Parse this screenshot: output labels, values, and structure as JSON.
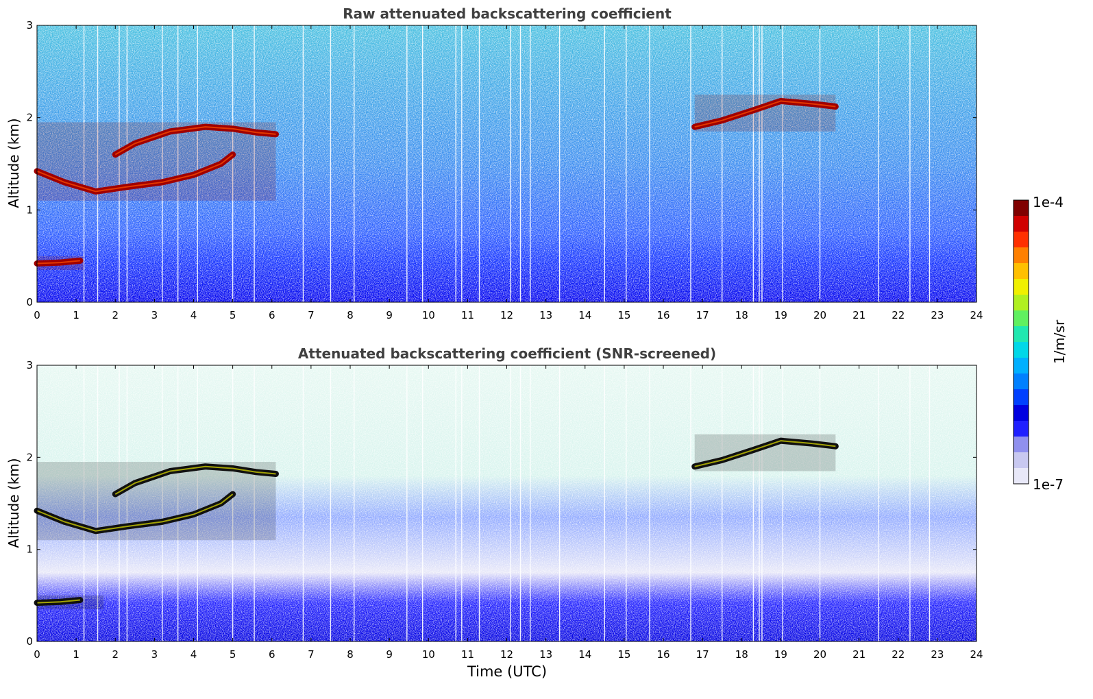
{
  "chart_data": [
    {
      "type": "heatmap",
      "title": "Raw attenuated backscattering coefficient",
      "xlabel": "",
      "ylabel": "Altitude (km)",
      "xlim": [
        0,
        24
      ],
      "ylim": [
        0,
        3
      ],
      "xticks": [
        "0",
        "1",
        "2",
        "3",
        "4",
        "5",
        "6",
        "7",
        "8",
        "9",
        "10",
        "11",
        "12",
        "13",
        "14",
        "15",
        "16",
        "17",
        "18",
        "19",
        "20",
        "21",
        "22",
        "23",
        "24"
      ],
      "yticks": [
        "0",
        "1",
        "2",
        "3"
      ],
      "features": [
        {
          "name": "cloud layer",
          "x": [
            0,
            6.1
          ],
          "y": [
            1.1,
            1.95
          ]
        },
        {
          "name": "low aerosol layer",
          "x": [
            0,
            1.2
          ],
          "y": [
            0.35,
            0.5
          ]
        },
        {
          "name": "cloud layer",
          "x": [
            16.8,
            20.4
          ],
          "y": [
            1.85,
            2.25
          ]
        }
      ]
    },
    {
      "type": "heatmap",
      "title": "Attenuated backscattering coefficient (SNR-screened)",
      "xlabel": "Time (UTC)",
      "ylabel": "Altitude (km)",
      "xlim": [
        0,
        24
      ],
      "ylim": [
        0,
        3
      ],
      "xticks": [
        "0",
        "1",
        "2",
        "3",
        "4",
        "5",
        "6",
        "7",
        "8",
        "9",
        "10",
        "11",
        "12",
        "13",
        "14",
        "15",
        "16",
        "17",
        "18",
        "19",
        "20",
        "21",
        "22",
        "23",
        "24"
      ],
      "yticks": [
        "0",
        "1",
        "2",
        "3"
      ],
      "features": [
        {
          "name": "cloud layer",
          "x": [
            0,
            6.1
          ],
          "y": [
            1.1,
            1.95
          ]
        },
        {
          "name": "low aerosol layer",
          "x": [
            0,
            1.7
          ],
          "y": [
            0.35,
            0.5
          ]
        },
        {
          "name": "cloud layer",
          "x": [
            16.8,
            20.4
          ],
          "y": [
            1.85,
            2.25
          ]
        }
      ]
    }
  ],
  "colorbar": {
    "max_label": "1e-4",
    "min_label": "1e-7",
    "label": "1/m/sr",
    "colors": [
      "#e8e8f8",
      "#c8c8f0",
      "#9090ee",
      "#2020ff",
      "#0000e0",
      "#0040ff",
      "#0080ff",
      "#00b0ff",
      "#00d8e8",
      "#20e8b0",
      "#60f060",
      "#b0f020",
      "#f0f000",
      "#ffc000",
      "#ff8000",
      "#ff3000",
      "#d00000",
      "#800000"
    ]
  }
}
